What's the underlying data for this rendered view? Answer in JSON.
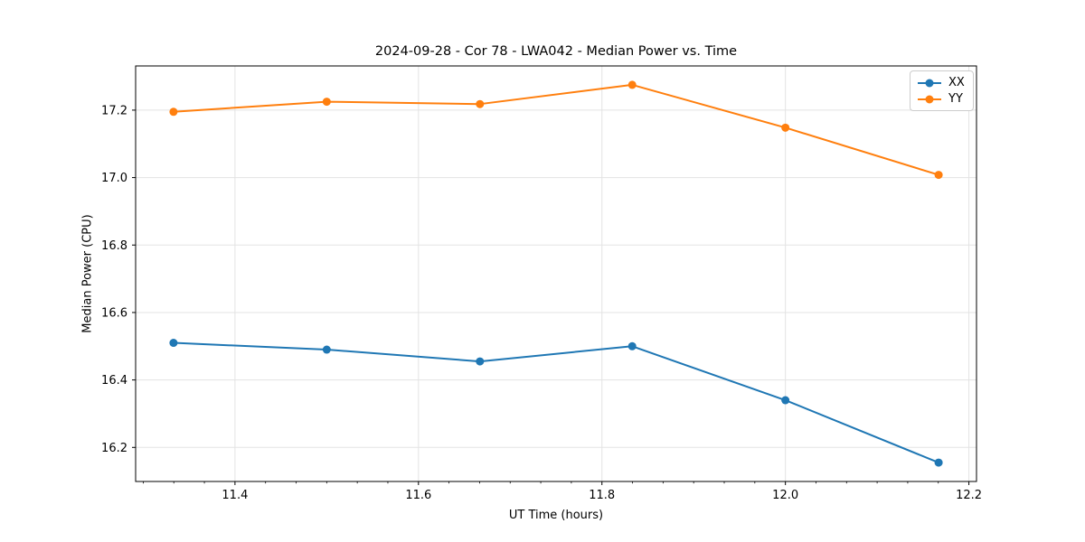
{
  "chart_data": {
    "type": "line",
    "title": "2024-09-28 - Cor 78 - LWA042 - Median Power vs. Time",
    "xlabel": "UT Time (hours)",
    "ylabel": "Median Power (CPU)",
    "x": [
      11.333,
      11.5,
      11.667,
      11.833,
      12.0,
      12.167
    ],
    "series": [
      {
        "name": "XX",
        "color": "#1f77b4",
        "values": [
          16.51,
          16.49,
          16.455,
          16.5,
          16.34,
          16.155
        ]
      },
      {
        "name": "YY",
        "color": "#ff7f0e",
        "values": [
          17.195,
          17.225,
          17.218,
          17.275,
          17.148,
          17.008
        ]
      }
    ],
    "xlim": [
      11.2917,
      12.2083
    ],
    "ylim": [
      16.099,
      17.331
    ],
    "xticks": [
      11.4,
      11.6,
      11.8,
      12.0,
      12.2
    ],
    "xtick_labels": [
      "11.4",
      "11.6",
      "11.8",
      "12.0",
      "12.2"
    ],
    "yticks": [
      16.2,
      16.4,
      16.6,
      16.8,
      17.0,
      17.2
    ],
    "ytick_labels": [
      "16.2",
      "16.4",
      "16.6",
      "16.8",
      "17.0",
      "17.2"
    ],
    "minor_xtick_step": 0.0333333,
    "grid": true,
    "grid_color": "#e3e3e3",
    "axis_color": "#000000",
    "legend_position": "upper-right",
    "legend_labels": [
      "XX",
      "YY"
    ]
  }
}
